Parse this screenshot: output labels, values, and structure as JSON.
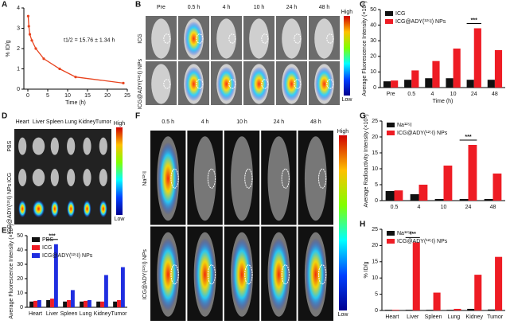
{
  "chart_data": [
    {
      "type": "line",
      "panel": "A",
      "x_label": "Time (h)",
      "y_label": "% ID/g",
      "annotation": "t1/2 = 15.76 ± 1.34 h",
      "x": [
        0.083,
        0.25,
        0.5,
        1,
        2,
        4,
        8,
        12,
        24
      ],
      "series": [
        {
          "name": "ICG@ADY(¹²⁵I) NPs",
          "color": "#e8431e",
          "values": [
            3.6,
            3.1,
            2.7,
            2.4,
            2.0,
            1.5,
            1.0,
            0.6,
            0.3
          ]
        }
      ],
      "xlim": [
        -1,
        25
      ],
      "xticks": [
        0,
        5,
        10,
        15,
        20,
        25
      ],
      "ylim": [
        0,
        4
      ],
      "yticks": [
        0,
        1,
        2,
        3,
        4
      ]
    },
    {
      "type": "bar",
      "panel": "C",
      "x_label": "Time (h)",
      "y_label": "Average Fluorescence Intensity (×10⁸)",
      "annotation": "***",
      "categories": [
        "Pre",
        "0.5",
        "4",
        "10",
        "24",
        "48"
      ],
      "series": [
        {
          "name": "ICG",
          "color": "#111111",
          "values": [
            4,
            5,
            6,
            6,
            5,
            5
          ]
        },
        {
          "name": "ICG@ADY(¹²⁵I) NPs",
          "color": "#ee1c24",
          "values": [
            4.5,
            11,
            17,
            25,
            38,
            24
          ]
        }
      ],
      "ylim": [
        0,
        50
      ],
      "yticks": [
        0,
        10,
        20,
        30,
        40,
        50
      ]
    },
    {
      "type": "bar",
      "panel": "E",
      "y_label": "Average Fluorescence Intensity (×10⁸)",
      "annotation": "***",
      "categories": [
        "Heart",
        "Liver",
        "Spleen",
        "Lung",
        "Kidney",
        "Tumor"
      ],
      "series": [
        {
          "name": "PBS",
          "color": "#111111",
          "values": [
            4,
            5,
            4,
            4,
            4,
            4
          ]
        },
        {
          "name": "ICG",
          "color": "#ee1c24",
          "values": [
            4.5,
            6,
            5,
            4.5,
            4,
            5
          ]
        },
        {
          "name": "ICG@ADY(¹²⁵I) NPs",
          "color": "#1f2ee0",
          "values": [
            5,
            44,
            12,
            5,
            22.5,
            28
          ]
        }
      ],
      "ylim": [
        0,
        50
      ],
      "yticks": [
        0,
        10,
        20,
        30,
        40,
        50
      ]
    },
    {
      "type": "bar",
      "panel": "G",
      "y_label": "Average Radioactivity Intensity (×10⁵)",
      "annotation": "***",
      "categories": [
        "0.5",
        "4",
        "10",
        "24",
        "48"
      ],
      "series": [
        {
          "name": "Na¹²⁵I",
          "color": "#111111",
          "values": [
            3,
            2,
            0.5,
            0.5,
            0.5
          ]
        },
        {
          "name": "ICG@ADY(¹²⁵I) NPs",
          "color": "#ee1c24",
          "values": [
            3.2,
            5,
            11,
            17.5,
            8.5
          ]
        }
      ],
      "ylim": [
        0,
        25
      ],
      "yticks": [
        0,
        5,
        10,
        15,
        20,
        25
      ]
    },
    {
      "type": "bar",
      "panel": "H",
      "y_label": "% ID/g",
      "annotation": "***",
      "categories": [
        "Heart",
        "Liver",
        "Spleen",
        "Lung",
        "Kidney",
        "Tumor"
      ],
      "series": [
        {
          "name": "Na¹²⁵I",
          "color": "#111111",
          "values": [
            0.2,
            0.2,
            0.2,
            0.2,
            0.5,
            0.3
          ]
        },
        {
          "name": "ICG@ADY(¹²⁵I) NPs",
          "color": "#ee1c24",
          "values": [
            0.2,
            21,
            5.5,
            0.5,
            11,
            16.5
          ]
        }
      ],
      "ylim": [
        0,
        25
      ],
      "yticks": [
        0,
        5,
        10,
        15,
        20,
        25
      ]
    }
  ],
  "image_panels": [
    {
      "panel": "B",
      "columns": [
        "Pre",
        "0.5 h",
        "4 h",
        "10 h",
        "24 h",
        "48 h"
      ],
      "rows": [
        "ICG",
        "ICG@ADY(¹²⁵I) NPs"
      ],
      "scale": [
        "High",
        "Low"
      ]
    },
    {
      "panel": "D",
      "columns": [
        "Heart",
        "Liver",
        "Spleen",
        "Lung",
        "Kidney",
        "Tumor"
      ],
      "rows": [
        "PBS",
        "ICG",
        "ICG@ADY(¹²⁵I) NPs"
      ],
      "scale": [
        "High",
        "Low"
      ]
    },
    {
      "panel": "F",
      "columns": [
        "0.5 h",
        "4 h",
        "10 h",
        "24 h",
        "48 h"
      ],
      "rows": [
        "Na¹²⁵I",
        "ICG@ADY(¹²⁵I) NPs"
      ],
      "scale": [
        "High",
        "Low"
      ]
    }
  ]
}
